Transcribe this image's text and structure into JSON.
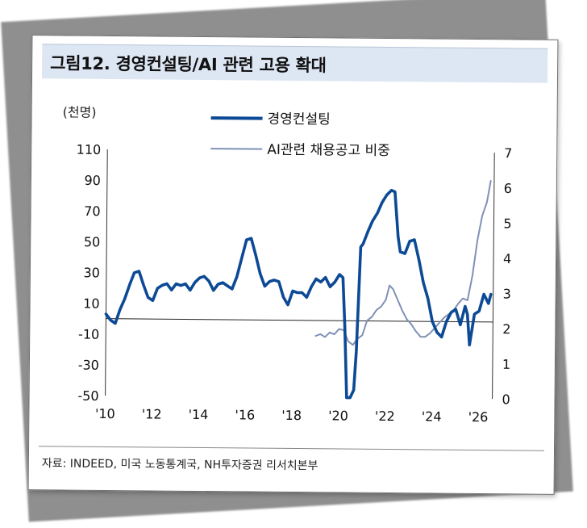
{
  "title": "그림12. 경영컨설팅/AI 관련 고용 확대",
  "source": "자료: INDEED, 미국 노동통계국, NH투자증권 리서치본부",
  "chart_data": {
    "type": "line",
    "ylabel_left": "(천명)",
    "left_axis": {
      "ylim": [
        -50,
        110
      ],
      "ticks": [
        "110",
        "90",
        "70",
        "50",
        "30",
        "10",
        "-10",
        "-30",
        "-50"
      ]
    },
    "right_axis": {
      "ylim": [
        0,
        7
      ],
      "ticks": [
        "7",
        "6",
        "5",
        "4",
        "3",
        "2",
        "1",
        "0"
      ]
    },
    "x_range": [
      2010,
      2026.6
    ],
    "x_ticks": [
      {
        "x": 2010,
        "label": "'10"
      },
      {
        "x": 2012,
        "label": "'12"
      },
      {
        "x": 2014,
        "label": "'14"
      },
      {
        "x": 2016,
        "label": "'16"
      },
      {
        "x": 2018,
        "label": "'18"
      },
      {
        "x": 2020,
        "label": "'20"
      },
      {
        "x": 2022,
        "label": "'22"
      },
      {
        "x": 2024,
        "label": "'24"
      },
      {
        "x": 2026,
        "label": "'26"
      }
    ],
    "baseline_value": 0,
    "series": [
      {
        "name": "경영컨설팅",
        "axis": "left",
        "color": "#0d4a95",
        "x": [
          2010.0,
          2010.2,
          2010.4,
          2010.6,
          2010.8,
          2011.0,
          2011.2,
          2011.4,
          2011.6,
          2011.8,
          2012.0,
          2012.2,
          2012.4,
          2012.6,
          2012.8,
          2013.0,
          2013.2,
          2013.4,
          2013.6,
          2013.8,
          2014.0,
          2014.2,
          2014.4,
          2014.6,
          2014.8,
          2015.0,
          2015.2,
          2015.4,
          2015.6,
          2015.8,
          2016.0,
          2016.2,
          2016.4,
          2016.6,
          2016.8,
          2017.0,
          2017.2,
          2017.4,
          2017.6,
          2017.8,
          2018.0,
          2018.2,
          2018.4,
          2018.6,
          2018.8,
          2019.0,
          2019.2,
          2019.4,
          2019.6,
          2019.8,
          2020.0,
          2020.15,
          2020.25,
          2020.35,
          2020.5,
          2020.65,
          2020.75,
          2020.9,
          2021.0,
          2021.2,
          2021.4,
          2021.6,
          2021.8,
          2022.0,
          2022.2,
          2022.35,
          2022.5,
          2022.6,
          2022.8,
          2023.0,
          2023.2,
          2023.4,
          2023.6,
          2023.8,
          2024.0,
          2024.2,
          2024.4,
          2024.6,
          2024.8,
          2025.0,
          2025.2,
          2025.4,
          2025.5,
          2025.6,
          2025.8,
          2026.0,
          2026.2,
          2026.4,
          2026.5
        ],
        "values": [
          3,
          -1,
          -3,
          6,
          13,
          22,
          30,
          31,
          22,
          14,
          12,
          20,
          22,
          23,
          19,
          23,
          22,
          23,
          19,
          24,
          27,
          28,
          25,
          19,
          23,
          24,
          22,
          20,
          28,
          40,
          52,
          53,
          42,
          30,
          22,
          25,
          26,
          25,
          15,
          10,
          19,
          18,
          18,
          15,
          22,
          27,
          25,
          28,
          22,
          25,
          30,
          28,
          -5,
          -50,
          -50,
          -45,
          -20,
          48,
          50,
          58,
          65,
          70,
          77,
          82,
          85,
          84,
          55,
          45,
          44,
          52,
          53,
          40,
          25,
          15,
          0,
          -7,
          -10,
          0,
          6,
          8,
          -2,
          10,
          5,
          -15,
          5,
          7,
          18,
          12,
          18
        ]
      },
      {
        "name": "AI관련 채용공고 비중",
        "axis": "right",
        "color": "#7f91b6",
        "x": [
          2019.0,
          2019.2,
          2019.4,
          2019.6,
          2019.8,
          2020.0,
          2020.2,
          2020.4,
          2020.6,
          2020.8,
          2021.0,
          2021.2,
          2021.4,
          2021.6,
          2021.8,
          2022.0,
          2022.15,
          2022.3,
          2022.5,
          2022.7,
          2022.9,
          2023.1,
          2023.3,
          2023.5,
          2023.7,
          2023.9,
          2024.1,
          2024.3,
          2024.5,
          2024.7,
          2024.9,
          2025.1,
          2025.3,
          2025.5,
          2025.7,
          2025.9,
          2026.1,
          2026.3,
          2026.45
        ],
        "values": [
          1.75,
          1.8,
          1.72,
          1.85,
          1.8,
          1.95,
          1.92,
          1.6,
          1.5,
          1.68,
          1.78,
          2.2,
          2.3,
          2.5,
          2.6,
          2.8,
          3.2,
          3.1,
          2.8,
          2.5,
          2.25,
          2.1,
          1.9,
          1.75,
          1.75,
          1.85,
          2.0,
          2.15,
          2.3,
          2.4,
          2.5,
          2.7,
          2.85,
          2.8,
          3.5,
          4.5,
          5.2,
          5.6,
          6.2
        ]
      }
    ]
  }
}
